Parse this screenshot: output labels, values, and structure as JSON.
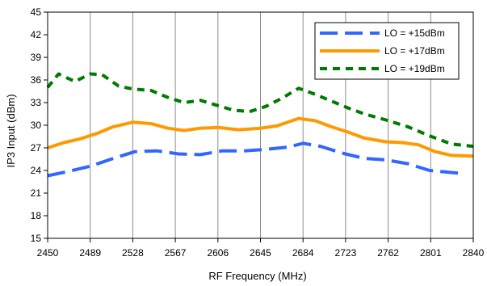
{
  "chart_data": {
    "type": "line",
    "title": "",
    "xlabel": "RF Frequency (MHz)",
    "ylabel": "IP3 Input (dBm)",
    "xlim": [
      2450,
      2840
    ],
    "ylim": [
      15,
      45
    ],
    "x_ticks": [
      2450,
      2489,
      2528,
      2567,
      2606,
      2645,
      2684,
      2723,
      2762,
      2801,
      2840
    ],
    "y_ticks": [
      15,
      18,
      21,
      24,
      27,
      30,
      33,
      36,
      39,
      42,
      45
    ],
    "grid": "vertical",
    "legend_position": "top-right",
    "series": [
      {
        "name": "LO = +15dBm",
        "color": "#3366ff",
        "style": "long-dash",
        "x": [
          2450,
          2470,
          2490,
          2510,
          2530,
          2550,
          2570,
          2590,
          2610,
          2630,
          2650,
          2670,
          2684,
          2700,
          2720,
          2740,
          2760,
          2780,
          2800,
          2830
        ],
        "y": [
          23.3,
          23.9,
          24.6,
          25.6,
          26.5,
          26.6,
          26.2,
          26.1,
          26.6,
          26.6,
          26.8,
          27.1,
          27.6,
          27.2,
          26.3,
          25.6,
          25.4,
          24.9,
          24.0,
          23.6
        ]
      },
      {
        "name": "LO = +17dBm",
        "color": "#ff9900",
        "style": "solid",
        "x": [
          2450,
          2465,
          2480,
          2495,
          2510,
          2528,
          2545,
          2560,
          2575,
          2590,
          2606,
          2625,
          2645,
          2660,
          2680,
          2695,
          2710,
          2725,
          2740,
          2760,
          2775,
          2790,
          2805,
          2820,
          2840
        ],
        "y": [
          27.0,
          27.7,
          28.2,
          28.9,
          29.8,
          30.4,
          30.2,
          29.6,
          29.3,
          29.6,
          29.7,
          29.4,
          29.6,
          29.9,
          30.9,
          30.6,
          29.8,
          29.1,
          28.3,
          27.8,
          27.7,
          27.4,
          26.5,
          26.0,
          25.9
        ]
      },
      {
        "name": "LO = +19dBm",
        "color": "#007a00",
        "style": "dash",
        "x": [
          2450,
          2460,
          2475,
          2489,
          2500,
          2515,
          2528,
          2545,
          2560,
          2575,
          2590,
          2606,
          2620,
          2635,
          2650,
          2665,
          2680,
          2695,
          2710,
          2725,
          2740,
          2760,
          2780,
          2800,
          2820,
          2840
        ],
        "y": [
          35.0,
          36.8,
          35.8,
          36.8,
          36.7,
          35.2,
          34.8,
          34.6,
          33.7,
          33.0,
          33.3,
          32.6,
          32.0,
          31.8,
          32.5,
          33.6,
          34.9,
          34.1,
          33.2,
          32.3,
          31.5,
          30.7,
          29.8,
          28.6,
          27.5,
          27.2
        ]
      }
    ]
  }
}
